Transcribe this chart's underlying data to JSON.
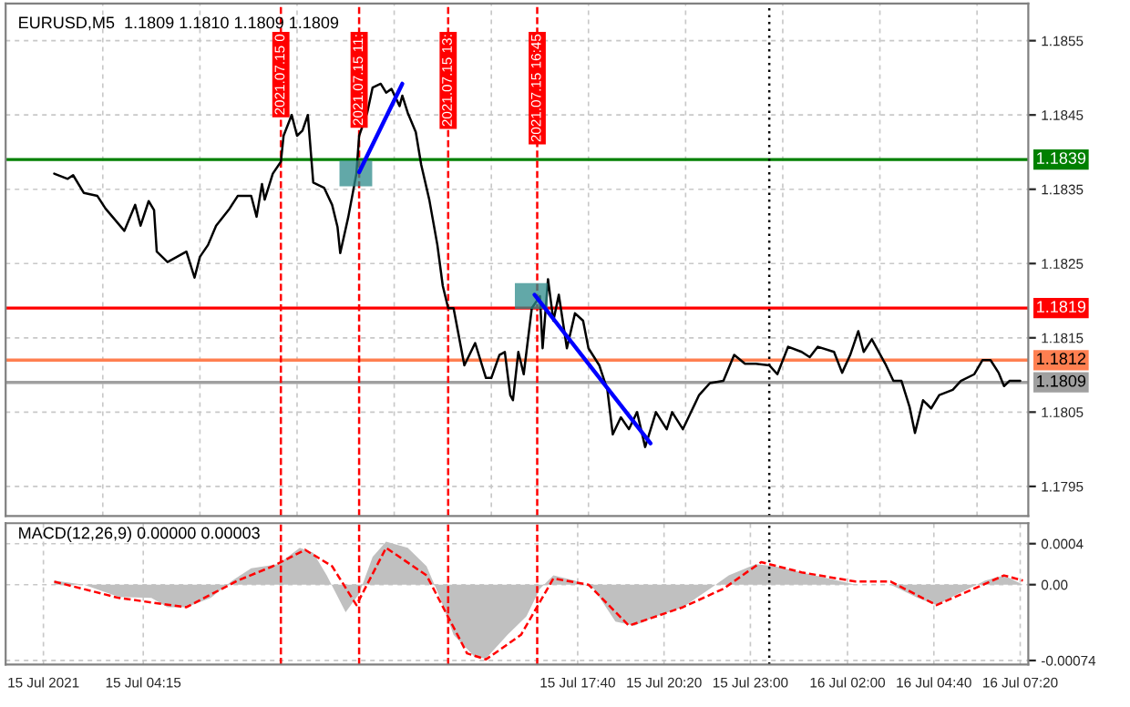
{
  "chart_data": [
    {
      "type": "line",
      "title": "EURUSD,M5  1.1809 1.1810 1.1809 1.1809",
      "xlim": [
        "2021-07-15T00:00",
        "2021-07-16T07:35"
      ],
      "ylim": [
        1.1791,
        1.186
      ],
      "yticks": [
        1.1795,
        1.1805,
        1.1815,
        1.1825,
        1.1835,
        1.1845,
        1.1855
      ],
      "tick_labels": "y",
      "grid": true,
      "series": [
        {
          "color": "#000000",
          "x": [
            "2021-07-15T01:30",
            "2021-07-15T01:55",
            "2021-07-15T02:05",
            "2021-07-15T02:25",
            "2021-07-15T02:50",
            "2021-07-15T03:05",
            "2021-07-15T03:40",
            "2021-07-15T04:00",
            "2021-07-15T04:10",
            "2021-07-15T04:25",
            "2021-07-15T04:35",
            "2021-07-15T04:40",
            "2021-07-15T05:00",
            "2021-07-15T05:35",
            "2021-07-15T05:50",
            "2021-07-15T06:00",
            "2021-07-15T06:15",
            "2021-07-15T06:30",
            "2021-07-15T06:55",
            "2021-07-15T07:10",
            "2021-07-15T07:35",
            "2021-07-15T07:45",
            "2021-07-15T07:55",
            "2021-07-15T08:00",
            "2021-07-15T08:15",
            "2021-07-15T08:30",
            "2021-07-15T08:35",
            "2021-07-15T08:50",
            "2021-07-15T09:00",
            "2021-07-15T09:10",
            "2021-07-15T09:20",
            "2021-07-15T09:30",
            "2021-07-15T09:50",
            "2021-07-15T10:05",
            "2021-07-15T10:15",
            "2021-07-15T10:20",
            "2021-07-15T10:35",
            "2021-07-15T10:50",
            "2021-07-15T10:55",
            "2021-07-15T11:10",
            "2021-07-15T11:20",
            "2021-07-15T11:35",
            "2021-07-15T11:45",
            "2021-07-15T11:55",
            "2021-07-15T12:10",
            "2021-07-15T12:15",
            "2021-07-15T12:25",
            "2021-07-15T12:40",
            "2021-07-15T12:50",
            "2021-07-15T13:05",
            "2021-07-15T13:20",
            "2021-07-15T13:30",
            "2021-07-15T13:40",
            "2021-07-15T13:50",
            "2021-07-15T14:10",
            "2021-07-15T14:30",
            "2021-07-15T14:50",
            "2021-07-15T15:00",
            "2021-07-15T15:15",
            "2021-07-15T15:25",
            "2021-07-15T15:35",
            "2021-07-15T15:40",
            "2021-07-15T15:50",
            "2021-07-15T16:00",
            "2021-07-15T16:15",
            "2021-07-15T16:30",
            "2021-07-15T16:35",
            "2021-07-15T16:45",
            "2021-07-15T16:55",
            "2021-07-15T17:05",
            "2021-07-15T17:20",
            "2021-07-15T17:35",
            "2021-07-15T17:50",
            "2021-07-15T18:00",
            "2021-07-15T18:20",
            "2021-07-15T18:35",
            "2021-07-15T18:45",
            "2021-07-15T19:00",
            "2021-07-15T19:15",
            "2021-07-15T19:30",
            "2021-07-15T19:45",
            "2021-07-15T20:05",
            "2021-07-15T20:25",
            "2021-07-15T20:35",
            "2021-07-15T20:55",
            "2021-07-15T21:10",
            "2021-07-15T21:25",
            "2021-07-15T21:45",
            "2021-07-15T22:10",
            "2021-07-15T22:30",
            "2021-07-15T22:50",
            "2021-07-15T23:10",
            "2021-07-15T23:35",
            "2021-07-15T23:50",
            "2021-07-16T00:10",
            "2021-07-16T00:35",
            "2021-07-16T00:50",
            "2021-07-16T01:05",
            "2021-07-16T01:35",
            "2021-07-16T01:50",
            "2021-07-16T02:05",
            "2021-07-16T02:20",
            "2021-07-16T02:30",
            "2021-07-16T02:45",
            "2021-07-16T03:10",
            "2021-07-16T03:25",
            "2021-07-16T03:40",
            "2021-07-16T03:55",
            "2021-07-16T04:05",
            "2021-07-16T04:20",
            "2021-07-16T04:35",
            "2021-07-16T04:50",
            "2021-07-16T05:15",
            "2021-07-16T05:30",
            "2021-07-16T05:55",
            "2021-07-16T06:10",
            "2021-07-16T06:25",
            "2021-07-16T06:40",
            "2021-07-16T06:50",
            "2021-07-16T07:00",
            "2021-07-16T07:20"
          ],
          "values": [
            1.18371,
            1.18364,
            1.18369,
            1.18345,
            1.18341,
            1.18324,
            1.18294,
            1.18329,
            1.18301,
            1.18334,
            1.18322,
            1.18266,
            1.18252,
            1.18266,
            1.18231,
            1.18259,
            1.18275,
            1.18301,
            1.18324,
            1.18341,
            1.18341,
            1.18313,
            1.18357,
            1.18336,
            1.18371,
            1.18387,
            1.18422,
            1.1845,
            1.18422,
            1.18429,
            1.1845,
            1.18359,
            1.18352,
            1.18329,
            1.18299,
            1.18264,
            1.18313,
            1.18371,
            1.18422,
            1.18453,
            1.18487,
            1.18492,
            1.1848,
            1.18485,
            1.18462,
            1.18476,
            1.18453,
            1.18427,
            1.18383,
            1.18336,
            1.18275,
            1.1822,
            1.1819,
            1.1819,
            1.18113,
            1.18143,
            1.18096,
            1.18096,
            1.18127,
            1.18131,
            1.18073,
            1.18066,
            1.18131,
            1.18101,
            1.1819,
            1.18206,
            1.18136,
            1.18229,
            1.18173,
            1.18208,
            1.18136,
            1.18183,
            1.18173,
            1.18136,
            1.18113,
            1.1808,
            1.1802,
            1.18043,
            1.18027,
            1.1805,
            1.18003,
            1.1805,
            1.18027,
            1.1805,
            1.18027,
            1.1805,
            1.18073,
            1.18089,
            1.18092,
            1.18127,
            1.18115,
            1.18115,
            1.18113,
            1.18101,
            1.18138,
            1.18131,
            1.18124,
            1.18138,
            1.18131,
            1.18103,
            1.18127,
            1.18159,
            1.18131,
            1.18148,
            1.18115,
            1.18092,
            1.18092,
            1.18057,
            1.18022,
            1.18066,
            1.18055,
            1.18073,
            1.1808,
            1.18092,
            1.18101,
            1.1812,
            1.1812,
            1.18103,
            1.18085,
            1.18092,
            1.18092
          ]
        },
        {
          "color": "#0000ff",
          "x": [
            "2021-07-15T10:55",
            "2021-07-15T12:15"
          ],
          "values": [
            1.18373,
            1.18492
          ]
        },
        {
          "color": "#0000ff",
          "x": [
            "2021-07-15T16:20",
            "2021-07-15T19:55"
          ],
          "values": [
            1.18208,
            1.18008
          ]
        }
      ],
      "ref_lines": [
        {
          "axis": "y",
          "value": 1.1839,
          "label": "1.1839",
          "color": "#008000",
          "line_style": "solid"
        },
        {
          "axis": "y",
          "value": 1.1819,
          "label": "1.1819",
          "color": "#ff0000",
          "line_style": "solid"
        },
        {
          "axis": "y",
          "value": 1.1812,
          "label": "1.1812",
          "color": "#ff7f50",
          "line_style": "solid"
        },
        {
          "axis": "y",
          "value": 1.1809,
          "label": "1.1809",
          "color": "#a0a0a0",
          "line_style": "solid"
        },
        {
          "axis": "x",
          "value": "2021-07-15T08:30",
          "label": "2021.07.15 0",
          "color": "#ff0000",
          "line_style": "dashed"
        },
        {
          "axis": "x",
          "value": "2021-07-15T10:55",
          "label": "2021.07.15 11:",
          "color": "#ff0000",
          "line_style": "dashed"
        },
        {
          "axis": "x",
          "value": "2021-07-15T13:40",
          "label": "2021.07.15 13:",
          "color": "#ff0000",
          "line_style": "dashed"
        },
        {
          "axis": "x",
          "value": "2021-07-15T16:25",
          "label": "2021.07.15 16:45",
          "color": "#ff0000",
          "line_style": "dashed"
        },
        {
          "axis": "x",
          "value": "2021-07-15T23:35",
          "color": "#000000",
          "line_style": "dotted"
        }
      ]
    },
    {
      "type": "area",
      "title": "MACD(12,26,9) 0.00000 0.00003",
      "xlim": [
        "2021-07-15T00:00",
        "2021-07-16T07:35"
      ],
      "ylim": [
        -0.00078,
        0.0006
      ],
      "yticks": [
        {
          "value": 0.0004,
          "label": "0.0004"
        },
        {
          "value": 0,
          "label": "0.00"
        },
        {
          "value": -0.00074,
          "label": "-0.00074"
        }
      ],
      "xticks": [
        {
          "value": "2021-07-15T01:10",
          "label": "15 Jul 2021"
        },
        {
          "value": "2021-07-15T04:15",
          "label": "15 Jul 04:15"
        },
        {
          "value": "2021-07-15T17:40",
          "label": "15 Jul 17:40"
        },
        {
          "value": "2021-07-15T20:20",
          "label": "15 Jul 20:20"
        },
        {
          "value": "2021-07-15T23:00",
          "label": "15 Jul 23:00"
        },
        {
          "value": "2021-07-16T02:00",
          "label": "16 Jul 02:00"
        },
        {
          "value": "2021-07-16T04:40",
          "label": "16 Jul 04:40"
        },
        {
          "value": "2021-07-16T07:20",
          "label": "16 Jul 07:20"
        }
      ],
      "grid": true,
      "series": [
        {
          "color": "#c0c0c0",
          "x": [
            "2021-07-15T01:30",
            "2021-07-15T02:25",
            "2021-07-15T03:30",
            "2021-07-15T04:30",
            "2021-07-15T05:00",
            "2021-07-15T05:35",
            "2021-07-15T06:20",
            "2021-07-15T07:00",
            "2021-07-15T07:35",
            "2021-07-15T08:25",
            "2021-07-15T09:05",
            "2021-07-15T09:30",
            "2021-07-15T09:55",
            "2021-07-15T10:30",
            "2021-07-15T10:55",
            "2021-07-15T11:20",
            "2021-07-15T11:45",
            "2021-07-15T12:25",
            "2021-07-15T13:00",
            "2021-07-15T13:25",
            "2021-07-15T13:50",
            "2021-07-15T14:30",
            "2021-07-15T14:50",
            "2021-07-15T15:30",
            "2021-07-15T16:05",
            "2021-07-15T16:30",
            "2021-07-15T16:55",
            "2021-07-15T17:35",
            "2021-07-15T18:10",
            "2021-07-15T18:50",
            "2021-07-15T19:25",
            "2021-07-15T20:05",
            "2021-07-15T20:55",
            "2021-07-15T21:45",
            "2021-07-15T22:20",
            "2021-07-15T23:10",
            "2021-07-15T23:45",
            "2021-07-16T00:35",
            "2021-07-16T01:25",
            "2021-07-16T02:15",
            "2021-07-16T03:20",
            "2021-07-16T04:10",
            "2021-07-16T04:45",
            "2021-07-16T05:25",
            "2021-07-16T06:15",
            "2021-07-16T06:50",
            "2021-07-16T07:25"
          ],
          "values": [
            4e-05,
            0,
            -0.00012,
            -0.00013,
            -0.00022,
            -0.00022,
            -0.00013,
            4e-05,
            0.00016,
            0.0002,
            0.00036,
            0.00031,
            9e-05,
            -0.00027,
            -9e-05,
            0.00027,
            0.00042,
            0.00036,
            0.00018,
            -0.00013,
            -0.00049,
            -0.00071,
            -0.00072,
            -0.00049,
            -0.00031,
            -4e-05,
            9e-05,
            4e-05,
            -4e-05,
            -0.00036,
            -0.0004,
            -0.00031,
            -0.00022,
            -4e-05,
            9e-05,
            0.0002,
            0.00018,
            0.00012,
            6e-05,
            0,
            0,
            -0.00013,
            -0.0002,
            -9e-05,
            4e-05,
            9e-05,
            0
          ]
        },
        {
          "type": "line",
          "color": "#ff0000",
          "line_style": "dashed",
          "x": [
            "2021-07-15T01:30",
            "2021-07-15T03:30",
            "2021-07-15T05:35",
            "2021-07-15T07:10",
            "2021-07-15T08:15",
            "2021-07-15T09:15",
            "2021-07-15T10:05",
            "2021-07-15T10:50",
            "2021-07-15T11:45",
            "2021-07-15T13:00",
            "2021-07-15T14:15",
            "2021-07-15T14:50",
            "2021-07-15T15:55",
            "2021-07-15T16:55",
            "2021-07-15T18:00",
            "2021-07-15T19:15",
            "2021-07-15T20:55",
            "2021-07-15T22:10",
            "2021-07-15T23:20",
            "2021-07-16T00:35",
            "2021-07-16T02:15",
            "2021-07-16T03:20",
            "2021-07-16T04:45",
            "2021-07-16T06:50",
            "2021-07-16T07:25"
          ],
          "values": [
            3e-05,
            -0.00013,
            -0.00022,
            4e-05,
            0.00018,
            0.00034,
            0.00018,
            -0.0002,
            0.00036,
            9e-05,
            -0.00067,
            -0.00073,
            -0.00049,
            6e-05,
            0,
            -0.0004,
            -0.00022,
            -4e-05,
            0.00022,
            0.00012,
            3e-05,
            3e-05,
            -0.0002,
            9e-05,
            4e-05
          ]
        }
      ],
      "ref_lines": [
        {
          "axis": "x",
          "value": "2021-07-15T08:30",
          "color": "#ff0000",
          "line_style": "dashed"
        },
        {
          "axis": "x",
          "value": "2021-07-15T10:55",
          "color": "#ff0000",
          "line_style": "dashed"
        },
        {
          "axis": "x",
          "value": "2021-07-15T13:40",
          "color": "#ff0000",
          "line_style": "dashed"
        },
        {
          "axis": "x",
          "value": "2021-07-15T16:25",
          "color": "#ff0000",
          "line_style": "dashed"
        },
        {
          "axis": "x",
          "value": "2021-07-15T23:35",
          "color": "#000000",
          "line_style": "dotted"
        }
      ]
    }
  ]
}
